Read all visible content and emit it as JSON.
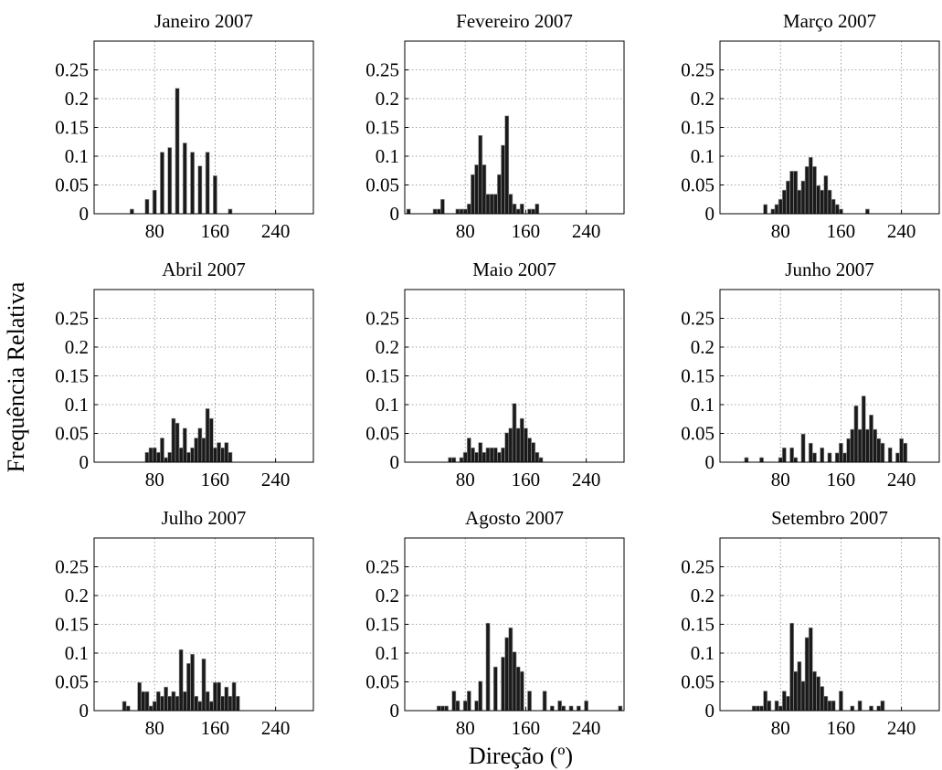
{
  "figure": {
    "ylabel": "Frequência Relativa",
    "xlabel": "Direção (º)"
  },
  "chart_data": [
    {
      "type": "bar",
      "title": "Janeiro 2007",
      "ylim": [
        0,
        0.3
      ],
      "yticks": [
        "0",
        "0.05",
        "0.1",
        "0.15",
        "0.2",
        "0.25"
      ],
      "xticks": [
        "80",
        "160",
        "240"
      ],
      "grid": true,
      "series": [
        {
          "x": [
            50,
            70,
            80,
            90,
            100,
            110,
            120,
            130,
            140,
            150,
            160,
            180
          ],
          "values": [
            0.008,
            0.025,
            0.041,
            0.107,
            0.115,
            0.218,
            0.123,
            0.107,
            0.083,
            0.107,
            0.066,
            0.008
          ]
        }
      ]
    },
    {
      "type": "bar",
      "title": "Fevereiro 2007",
      "ylim": [
        0,
        0.3
      ],
      "yticks": [
        "0",
        "0.05",
        "0.1",
        "0.15",
        "0.2",
        "0.25"
      ],
      "xticks": [
        "80",
        "160",
        "240"
      ],
      "grid": true,
      "series": [
        {
          "x": [
            5,
            40,
            45,
            50,
            70,
            75,
            80,
            85,
            90,
            95,
            100,
            105,
            110,
            115,
            120,
            125,
            130,
            135,
            140,
            145,
            150,
            155,
            165,
            170,
            175
          ],
          "values": [
            0.008,
            0.008,
            0.008,
            0.025,
            0.008,
            0.008,
            0.008,
            0.017,
            0.068,
            0.085,
            0.136,
            0.085,
            0.034,
            0.034,
            0.034,
            0.068,
            0.119,
            0.17,
            0.034,
            0.017,
            0.008,
            0.017,
            0.008,
            0.008,
            0.017
          ]
        }
      ]
    },
    {
      "type": "bar",
      "title": "Março 2007",
      "ylim": [
        0,
        0.3
      ],
      "yticks": [
        "0",
        "0.05",
        "0.1",
        "0.15",
        "0.2",
        "0.25"
      ],
      "xticks": [
        "80",
        "160",
        "240"
      ],
      "grid": true,
      "series": [
        {
          "x": [
            60,
            70,
            75,
            80,
            85,
            90,
            95,
            100,
            105,
            110,
            115,
            120,
            125,
            130,
            135,
            140,
            145,
            150,
            155,
            160,
            195
          ],
          "values": [
            0.016,
            0.008,
            0.016,
            0.025,
            0.041,
            0.057,
            0.074,
            0.074,
            0.041,
            0.057,
            0.082,
            0.098,
            0.082,
            0.049,
            0.041,
            0.066,
            0.041,
            0.025,
            0.016,
            0.008,
            0.008
          ]
        }
      ]
    },
    {
      "type": "bar",
      "title": "Abril 2007",
      "ylim": [
        0,
        0.3
      ],
      "yticks": [
        "0",
        "0.05",
        "0.1",
        "0.15",
        "0.2",
        "0.25"
      ],
      "xticks": [
        "80",
        "160",
        "240"
      ],
      "grid": true,
      "series": [
        {
          "x": [
            70,
            75,
            80,
            85,
            90,
            95,
            100,
            105,
            110,
            115,
            120,
            125,
            130,
            135,
            140,
            145,
            150,
            155,
            160,
            165,
            170,
            175,
            180
          ],
          "values": [
            0.017,
            0.025,
            0.025,
            0.017,
            0.042,
            0.008,
            0.017,
            0.076,
            0.068,
            0.025,
            0.059,
            0.017,
            0.025,
            0.042,
            0.059,
            0.042,
            0.093,
            0.076,
            0.025,
            0.034,
            0.025,
            0.034,
            0.017
          ]
        }
      ]
    },
    {
      "type": "bar",
      "title": "Maio 2007",
      "ylim": [
        0,
        0.3
      ],
      "yticks": [
        "0",
        "0.05",
        "0.1",
        "0.15",
        "0.2",
        "0.25"
      ],
      "xticks": [
        "80",
        "160",
        "240"
      ],
      "grid": true,
      "series": [
        {
          "x": [
            60,
            65,
            75,
            80,
            85,
            90,
            95,
            100,
            105,
            110,
            115,
            120,
            125,
            130,
            135,
            140,
            145,
            150,
            155,
            160,
            165,
            170,
            175,
            180
          ],
          "values": [
            0.008,
            0.008,
            0.008,
            0.017,
            0.042,
            0.025,
            0.017,
            0.034,
            0.017,
            0.025,
            0.025,
            0.025,
            0.017,
            0.025,
            0.051,
            0.059,
            0.102,
            0.059,
            0.076,
            0.059,
            0.042,
            0.034,
            0.017,
            0.008
          ]
        }
      ]
    },
    {
      "type": "bar",
      "title": "Junho 2007",
      "ylim": [
        0,
        0.3
      ],
      "yticks": [
        "0",
        "0.05",
        "0.1",
        "0.15",
        "0.2",
        "0.25"
      ],
      "xticks": [
        "80",
        "160",
        "240"
      ],
      "grid": true,
      "series": [
        {
          "x": [
            35,
            55,
            80,
            85,
            95,
            100,
            110,
            120,
            125,
            135,
            145,
            155,
            160,
            165,
            170,
            175,
            180,
            185,
            190,
            195,
            200,
            205,
            210,
            215,
            225,
            235,
            240,
            245
          ],
          "values": [
            0.008,
            0.008,
            0.008,
            0.025,
            0.025,
            0.008,
            0.049,
            0.033,
            0.016,
            0.025,
            0.016,
            0.016,
            0.033,
            0.016,
            0.041,
            0.057,
            0.098,
            0.057,
            0.115,
            0.057,
            0.082,
            0.057,
            0.041,
            0.033,
            0.025,
            0.016,
            0.041,
            0.033
          ]
        }
      ]
    },
    {
      "type": "bar",
      "title": "Julho 2007",
      "ylim": [
        0,
        0.3
      ],
      "yticks": [
        "0",
        "0.05",
        "0.1",
        "0.15",
        "0.2",
        "0.25"
      ],
      "xticks": [
        "80",
        "160",
        "240"
      ],
      "grid": true,
      "series": [
        {
          "x": [
            40,
            45,
            60,
            65,
            70,
            75,
            80,
            85,
            90,
            95,
            100,
            105,
            110,
            115,
            120,
            125,
            130,
            135,
            140,
            145,
            150,
            155,
            160,
            165,
            170,
            175,
            180,
            185,
            190
          ],
          "values": [
            0.016,
            0.008,
            0.049,
            0.033,
            0.033,
            0.008,
            0.016,
            0.033,
            0.025,
            0.041,
            0.025,
            0.033,
            0.025,
            0.106,
            0.033,
            0.082,
            0.098,
            0.025,
            0.016,
            0.09,
            0.033,
            0.016,
            0.049,
            0.049,
            0.025,
            0.041,
            0.025,
            0.049,
            0.025
          ]
        }
      ]
    },
    {
      "type": "bar",
      "title": "Agosto 2007",
      "ylim": [
        0,
        0.3
      ],
      "yticks": [
        "0",
        "0.05",
        "0.1",
        "0.15",
        "0.2",
        "0.25"
      ],
      "xticks": [
        "80",
        "160",
        "240"
      ],
      "grid": true,
      "series": [
        {
          "x": [
            45,
            50,
            55,
            65,
            70,
            80,
            85,
            95,
            100,
            110,
            120,
            130,
            135,
            140,
            145,
            150,
            155,
            165,
            185,
            195,
            205,
            210,
            220,
            230,
            240,
            285
          ],
          "values": [
            0.008,
            0.008,
            0.008,
            0.034,
            0.017,
            0.017,
            0.034,
            0.017,
            0.051,
            0.152,
            0.076,
            0.093,
            0.127,
            0.144,
            0.102,
            0.076,
            0.068,
            0.034,
            0.034,
            0.008,
            0.017,
            0.008,
            0.008,
            0.008,
            0.017,
            0.008
          ]
        }
      ]
    },
    {
      "type": "bar",
      "title": "Setembro 2007",
      "ylim": [
        0,
        0.3
      ],
      "yticks": [
        "0",
        "0.05",
        "0.1",
        "0.15",
        "0.2",
        "0.25"
      ],
      "xticks": [
        "80",
        "160",
        "240"
      ],
      "grid": true,
      "series": [
        {
          "x": [
            45,
            50,
            55,
            60,
            65,
            75,
            80,
            85,
            90,
            95,
            100,
            105,
            110,
            115,
            120,
            125,
            130,
            135,
            140,
            145,
            150,
            160,
            175,
            185,
            200,
            210,
            215
          ],
          "values": [
            0.008,
            0.008,
            0.008,
            0.034,
            0.017,
            0.017,
            0.008,
            0.034,
            0.025,
            0.152,
            0.068,
            0.085,
            0.051,
            0.127,
            0.144,
            0.068,
            0.059,
            0.042,
            0.025,
            0.017,
            0.017,
            0.034,
            0.008,
            0.017,
            0.008,
            0.008,
            0.017
          ]
        }
      ]
    }
  ]
}
